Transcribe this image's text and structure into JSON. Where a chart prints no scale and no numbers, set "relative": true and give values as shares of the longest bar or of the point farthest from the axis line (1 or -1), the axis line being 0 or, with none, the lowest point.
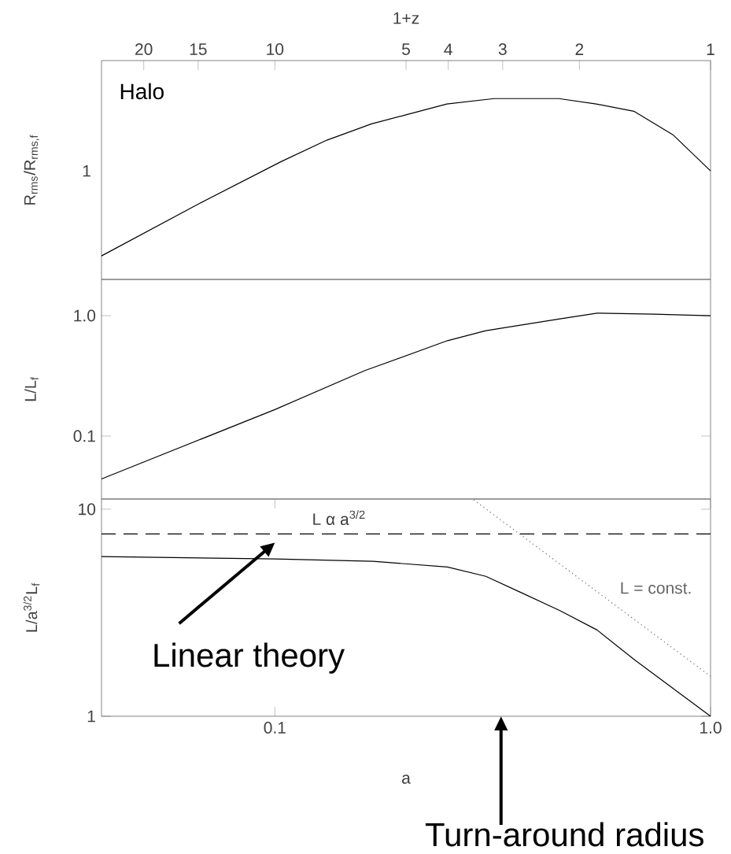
{
  "chart_data": [
    {
      "type": "line",
      "relative": true,
      "log": "x",
      "xlim": [
        25,
        1
      ],
      "xticks": [
        20,
        15,
        10,
        5,
        4,
        3,
        2,
        1
      ],
      "xlabel": "1+z",
      "ylabel": "R$_{rms}$/R$_{rms,f}$",
      "tick_labels": "x",
      "annotations": [
        "Halo",
        "1"
      ],
      "x": [
        25,
        14.9,
        9.7,
        7.6,
        6.0,
        5.0,
        4.03,
        3.14,
        2.71,
        2.23,
        1.83,
        1.5,
        1.22,
        1.0
      ],
      "series": [
        {
          "color": "#000000",
          "values": [
            0.13,
            0.42,
            0.65,
            0.77,
            0.86,
            0.91,
            0.97,
            1.0,
            1.0,
            1.0,
            0.97,
            0.93,
            0.8,
            0.6
          ]
        }
      ]
    },
    {
      "type": "line",
      "log": "xy",
      "xlim": [
        0.04,
        1.0
      ],
      "ylim": [
        0.03,
        2.0
      ],
      "yticks": [
        {
          "value": 0.1,
          "label": "0.1"
        },
        {
          "value": 1.0,
          "label": "1.0"
        }
      ],
      "ylabel": "L/L$_{f}$",
      "tick_labels": "y",
      "x": [
        0.04,
        0.1,
        0.161,
        0.249,
        0.305,
        0.451,
        0.549,
        0.74,
        1.0
      ],
      "series": [
        {
          "color": "#000000",
          "values": [
            0.044,
            0.166,
            0.35,
            0.62,
            0.75,
            0.94,
            1.05,
            1.03,
            1.0
          ]
        }
      ]
    },
    {
      "type": "line",
      "log": "xy",
      "xlim": [
        0.04,
        1.0
      ],
      "ylim": [
        1,
        11.2
      ],
      "xticks": [
        {
          "value": 0.1,
          "label": "0.1"
        },
        {
          "value": 1.0,
          "label": "1.0"
        }
      ],
      "yticks": [
        1,
        10
      ],
      "xlabel": "a",
      "ylabel": "L/a$^{3/2}$L$_{f}$",
      "ref_lines": [
        {
          "axis": "y",
          "value": 7.6,
          "label": "L α a$^{3/2}$",
          "color": "#000000",
          "line_style": "dashed"
        }
      ],
      "annotations": [
        "Linear theory",
        "Turn-around radius"
      ],
      "x": [
        0.04,
        0.1,
        0.168,
        0.249,
        0.305,
        0.37,
        0.451,
        0.549,
        0.67,
        1.0
      ],
      "series": [
        {
          "color": "#000000",
          "values": [
            5.9,
            5.75,
            5.6,
            5.26,
            4.74,
            3.93,
            3.24,
            2.61,
            1.87,
            1.0
          ]
        },
        {
          "type": "line",
          "name": "L = const.",
          "color": "#666666",
          "line_style": "dotted",
          "x": [
            0.286,
            1.0
          ],
          "values": [
            11.1,
            1.56
          ]
        }
      ]
    }
  ]
}
